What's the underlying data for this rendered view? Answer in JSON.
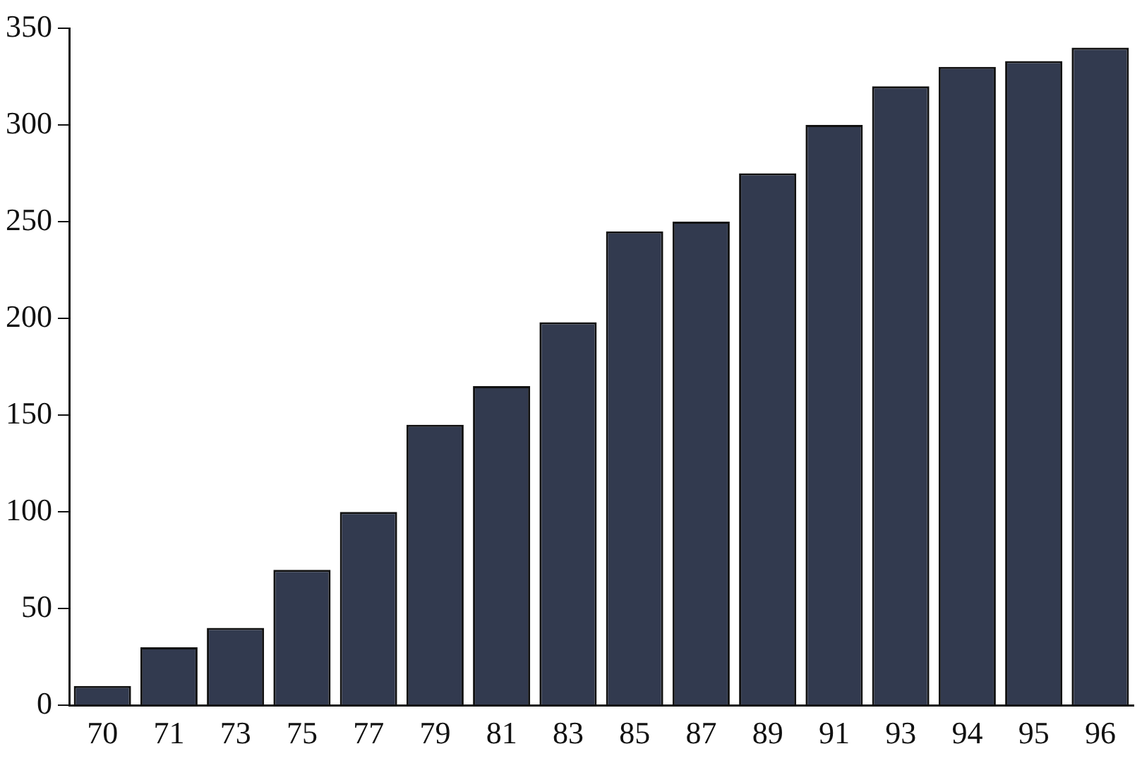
{
  "chart_data": {
    "type": "bar",
    "categories": [
      "70",
      "71",
      "73",
      "75",
      "77",
      "79",
      "81",
      "83",
      "85",
      "87",
      "89",
      "91",
      "93",
      "94",
      "95",
      "96"
    ],
    "values": [
      10,
      30,
      40,
      70,
      100,
      145,
      165,
      198,
      245,
      250,
      275,
      300,
      320,
      330,
      333,
      340
    ],
    "color": "#323a4f",
    "ylim": [
      0,
      350
    ],
    "yticks": [
      0,
      50,
      100,
      150,
      200,
      250,
      300,
      350
    ],
    "grid": false,
    "legend": false
  }
}
